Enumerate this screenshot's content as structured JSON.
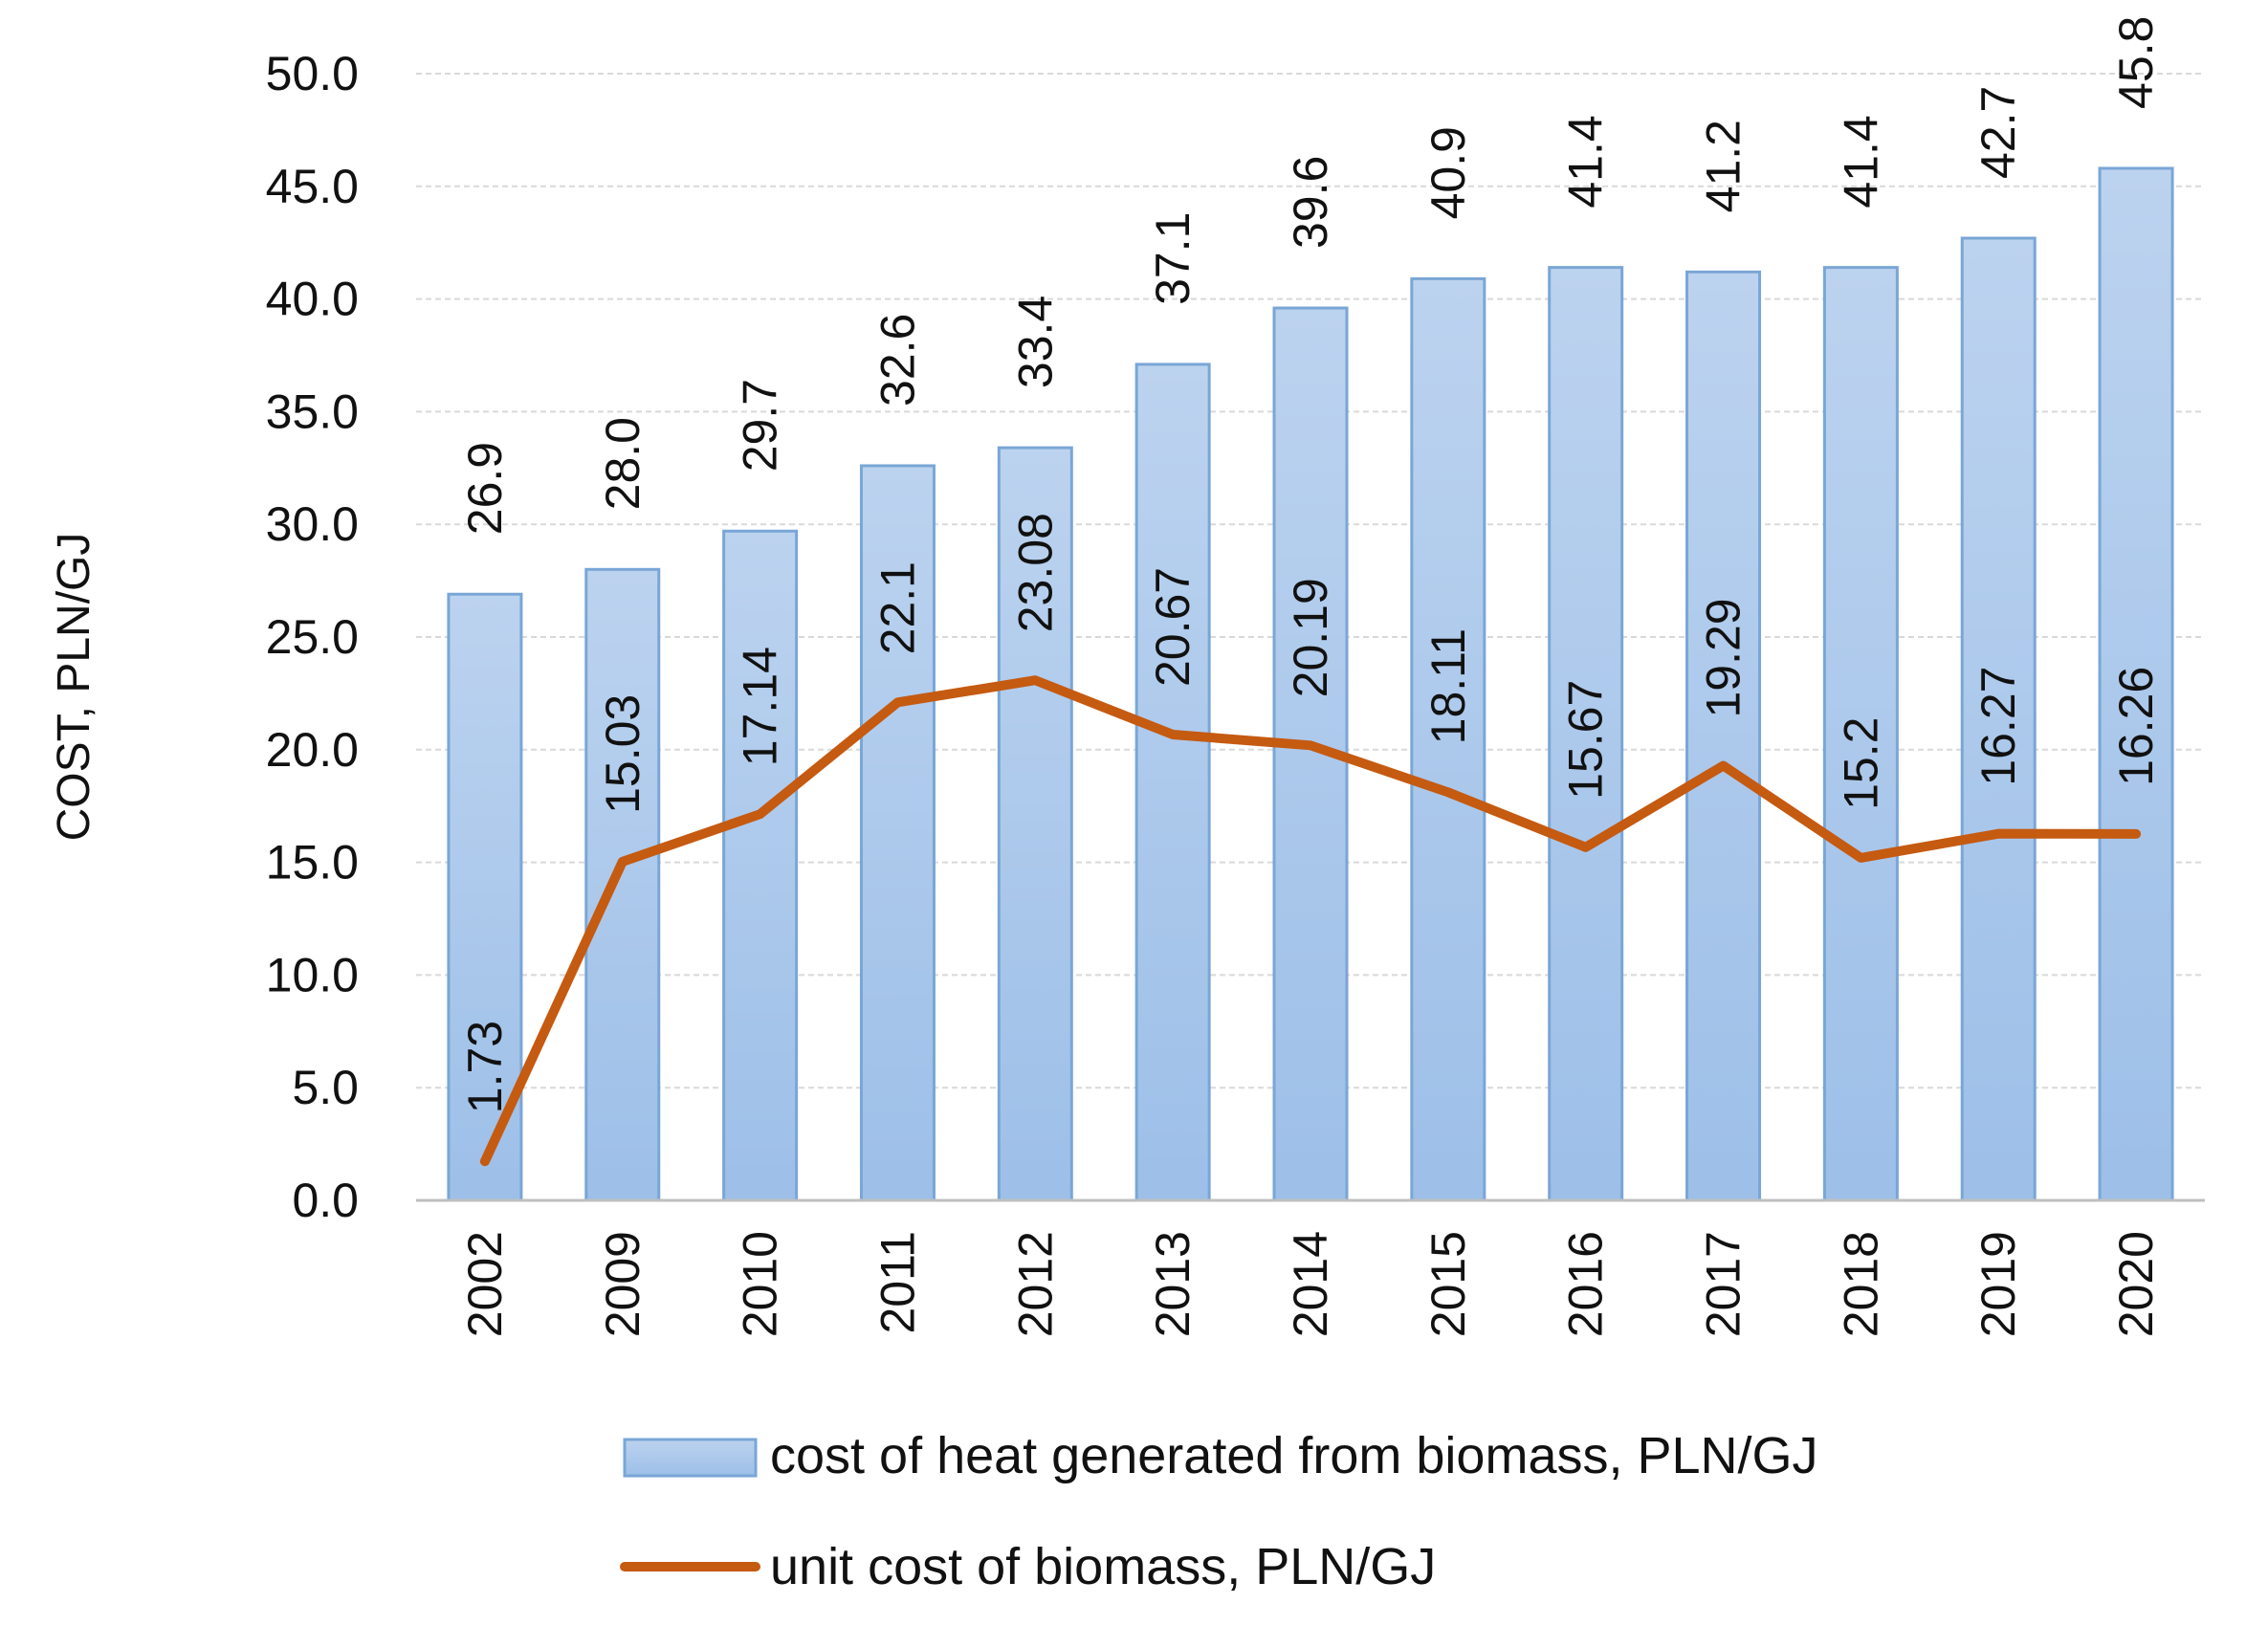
{
  "chart_data": {
    "type": "bar",
    "title": "",
    "xlabel": "",
    "ylabel": "COST, PLN/GJ",
    "ylim": [
      0,
      50
    ],
    "yticks": [
      "0.0",
      "5.0",
      "10.0",
      "15.0",
      "20.0",
      "25.0",
      "30.0",
      "35.0",
      "40.0",
      "45.0",
      "50.0"
    ],
    "grid": true,
    "legend_position": "bottom",
    "categories": [
      "2002",
      "2009",
      "2010",
      "2011",
      "2012",
      "2013",
      "2014",
      "2015",
      "2016",
      "2017",
      "2018",
      "2019",
      "2020"
    ],
    "series": [
      {
        "name": "cost of heat generated from biomass, PLN/GJ",
        "type": "bar",
        "values": [
          26.9,
          28.0,
          29.7,
          32.6,
          33.4,
          37.1,
          39.6,
          40.9,
          41.4,
          41.2,
          41.4,
          42.7,
          45.8
        ],
        "labels": [
          "26.9",
          "28.0",
          "29.7",
          "32.6",
          "33.4",
          "37.1",
          "39.6",
          "40.9",
          "41.4",
          "41.2",
          "41.4",
          "42.7",
          "45.8"
        ],
        "color": "#a9c6ea"
      },
      {
        "name": "unit cost of biomass, PLN/GJ",
        "type": "line",
        "values": [
          1.73,
          15.03,
          17.14,
          22.1,
          23.08,
          20.67,
          20.19,
          18.11,
          15.67,
          19.29,
          15.2,
          16.27,
          16.26
        ],
        "labels": [
          "1.73",
          "15.03",
          "17.14",
          "22.1",
          "23.08",
          "20.67",
          "20.19",
          "18.11",
          "15.67",
          "19.29",
          "15.2",
          "16.27",
          "16.26"
        ],
        "color": "#c55a11"
      }
    ]
  }
}
